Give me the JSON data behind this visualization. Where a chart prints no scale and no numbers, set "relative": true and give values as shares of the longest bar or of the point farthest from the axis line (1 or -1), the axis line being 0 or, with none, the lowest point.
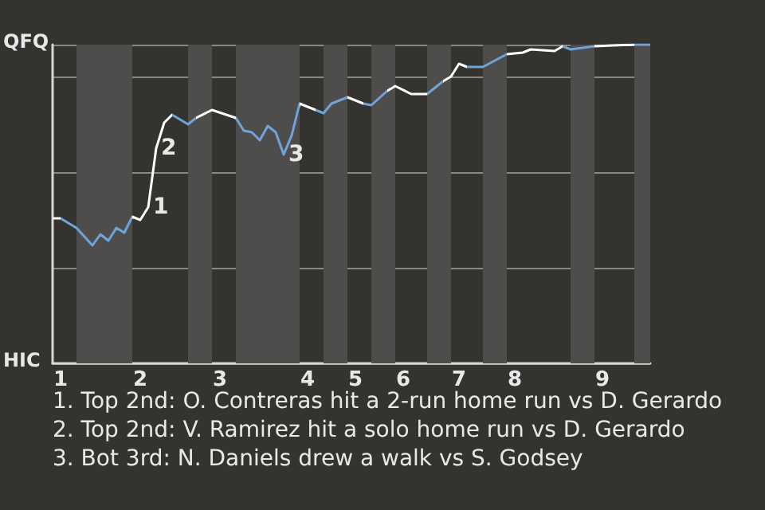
{
  "chart_data": {
    "type": "line",
    "categories": [
      null,
      "1",
      null,
      null,
      null,
      null,
      null,
      null,
      null,
      null,
      null,
      "2",
      null,
      null,
      null,
      null,
      null,
      null,
      null,
      null,
      null,
      "3",
      null,
      null,
      null,
      null,
      null,
      null,
      null,
      null,
      null,
      null,
      "4",
      null,
      null,
      null,
      null,
      null,
      "5",
      null,
      null,
      null,
      null,
      null,
      "6",
      null,
      null,
      null,
      null,
      null,
      null,
      "7",
      null,
      null,
      null,
      null,
      null,
      null,
      "8",
      null,
      null,
      null,
      null,
      null,
      null,
      null,
      null,
      null,
      null,
      "9",
      null,
      null,
      null,
      null,
      null,
      null
    ],
    "series": [
      {
        "values": [
          0.455,
          0.455,
          null,
          0.425,
          null,
          0.37,
          0.405,
          0.385,
          0.425,
          0.41,
          0.46,
          0.45,
          0.49,
          0.675,
          0.755,
          0.78,
          null,
          0.75,
          0.77,
          null,
          0.795,
          null,
          null,
          0.77,
          0.73,
          0.725,
          0.7,
          0.745,
          0.725,
          0.655,
          0.715,
          0.815,
          null,
          0.795,
          0.785,
          0.815,
          null,
          0.835,
          null,
          0.815,
          0.81,
          null,
          0.855,
          0.87,
          null,
          0.845,
          null,
          0.845,
          null,
          0.885,
          0.9,
          0.94,
          0.93,
          null,
          0.93,
          null,
          null,
          0.97,
          null,
          0.975,
          0.985,
          null,
          null,
          0.98,
          0.995,
          0.985,
          null,
          null,
          0.995,
          null,
          null,
          null,
          null,
          1,
          null,
          1
        ],
        "colors": [
          null,
          "#ffffff",
          null,
          "#6fa4d8",
          null,
          "#6fa4d8",
          "#6fa4d8",
          "#6fa4d8",
          "#6fa4d8",
          "#6fa4d8",
          "#6fa4d8",
          "#ffffff",
          "#ffffff",
          "#ffffff",
          "#ffffff",
          "#ffffff",
          null,
          "#6fa4d8",
          "#6fa4d8",
          null,
          "#ffffff",
          null,
          null,
          "#ffffff",
          "#6fa4d8",
          "#6fa4d8",
          "#6fa4d8",
          "#6fa4d8",
          "#6fa4d8",
          "#6fa4d8",
          "#6fa4d8",
          "#6fa4d8",
          null,
          "#ffffff",
          "#6fa4d8",
          "#6fa4d8",
          null,
          "#6fa4d8",
          null,
          "#ffffff",
          "#6fa4d8",
          null,
          "#6fa4d8",
          "#ffffff",
          null,
          "#ffffff",
          null,
          "#ffffff",
          null,
          "#6fa4d8",
          "#ffffff",
          "#ffffff",
          "#ffffff",
          null,
          "#6fa4d8",
          null,
          null,
          "#6fa4d8",
          null,
          "#ffffff",
          "#ffffff",
          null,
          null,
          "#ffffff",
          "#ffffff",
          "#6fa4d8",
          null,
          null,
          "#6fa4d8",
          null,
          null,
          null,
          null,
          "#ffffff",
          null,
          "#6fa4d8"
        ],
        "name": null
      }
    ],
    "relative": true,
    "grid": "y",
    "marker": "none",
    "annotations": [
      "QFQ",
      "HIC",
      "1",
      "2",
      "3",
      "1. Top 2nd: O. Contreras hit a 2-run home run vs D. Gerardo",
      "2. Top 2nd: V. Ramirez hit a solo home run vs D. Gerardo",
      "3. Bot 3rd: N. Daniels drew a walk vs S. Godsey"
    ]
  }
}
